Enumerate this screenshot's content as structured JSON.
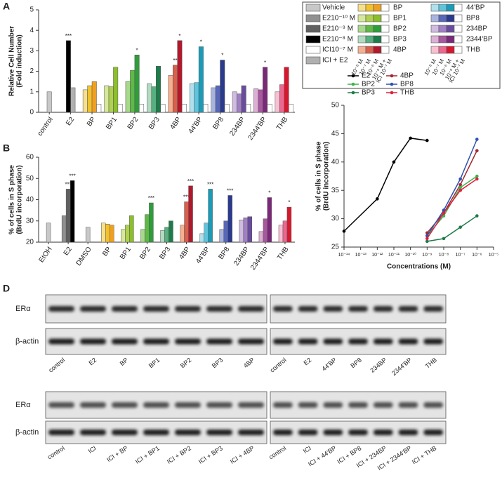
{
  "chart_data": [
    {
      "type": "bar",
      "panel": "A",
      "ylabel": [
        "Relative Cell Number",
        "(Fold induction)"
      ],
      "ylim": [
        0,
        5
      ],
      "yticks": [
        0,
        1,
        2,
        3,
        4,
        5
      ],
      "groups": [
        {
          "category": "control",
          "values": [
            1.0
          ],
          "colors": [
            "#c8c8c8"
          ],
          "stars": [
            null
          ]
        },
        {
          "category": "E2",
          "values": [
            3.5,
            1.2
          ],
          "colors": [
            "#000000",
            "#b0b0b0"
          ],
          "stars": [
            "***",
            null
          ]
        },
        {
          "category": "BP",
          "values": [
            1.1,
            1.3,
            1.5,
            0.4
          ],
          "colors": [
            "#f7e08a",
            "#f2c12e",
            "#f0a020",
            "#ffffff"
          ],
          "stars": [
            null,
            null,
            null,
            null
          ]
        },
        {
          "category": "BP1",
          "values": [
            1.3,
            1.25,
            2.2,
            0.4
          ],
          "colors": [
            "#d6e89a",
            "#b0d050",
            "#8cbf2a",
            "#ffffff"
          ],
          "stars": [
            null,
            null,
            null,
            null
          ]
        },
        {
          "category": "BP2",
          "values": [
            1.5,
            2.05,
            2.8,
            0.4
          ],
          "colors": [
            "#a8d88a",
            "#60b848",
            "#2e9e3a",
            "#ffffff"
          ],
          "stars": [
            null,
            null,
            "*",
            null
          ]
        },
        {
          "category": "BP3",
          "values": [
            1.4,
            1.25,
            2.25,
            0.4
          ],
          "colors": [
            "#b2dcc0",
            "#58b080",
            "#1e7b4a",
            "#ffffff"
          ],
          "stars": [
            null,
            null,
            null,
            null
          ]
        },
        {
          "category": "4BP",
          "values": [
            1.8,
            2.3,
            3.5,
            0.4
          ],
          "colors": [
            "#f4b090",
            "#d8604d",
            "#b2182b",
            "#ffffff"
          ],
          "stars": [
            null,
            "**",
            "*",
            null
          ]
        },
        {
          "category": "44'BP",
          "values": [
            1.4,
            1.45,
            3.2,
            0.4
          ],
          "colors": [
            "#b0e0ec",
            "#60c4dc",
            "#1a9bb8",
            "#ffffff"
          ],
          "stars": [
            null,
            null,
            "*",
            null
          ]
        },
        {
          "category": "BP8",
          "values": [
            1.2,
            1.3,
            2.55,
            0.4
          ],
          "colors": [
            "#a8b4e0",
            "#5868b8",
            "#2a3a8c",
            "#ffffff"
          ],
          "stars": [
            null,
            null,
            "*",
            null
          ]
        },
        {
          "category": "234BP",
          "values": [
            1.0,
            0.9,
            1.3,
            0.4
          ],
          "colors": [
            "#d0bce0",
            "#a080c4",
            "#6a4c9c",
            "#ffffff"
          ],
          "stars": [
            null,
            null,
            null,
            null
          ]
        },
        {
          "category": "2344'BP",
          "values": [
            1.15,
            1.1,
            2.2,
            0.4
          ],
          "colors": [
            "#dcb0d4",
            "#a8589e",
            "#7a2878",
            "#ffffff"
          ],
          "stars": [
            null,
            null,
            "*",
            null
          ]
        },
        {
          "category": "THB",
          "values": [
            1.0,
            1.35,
            2.2,
            0.4
          ],
          "colors": [
            "#f8c0d0",
            "#ec6890",
            "#d6182e",
            "#ffffff"
          ],
          "stars": [
            null,
            null,
            null,
            null
          ]
        }
      ],
      "legend": {
        "entries": [
          {
            "label": "Vehicle",
            "color": "#c8c8c8"
          },
          {
            "label": "E210⁻¹⁰ M",
            "color": "#909090"
          },
          {
            "label": "E210⁻⁹ M",
            "color": "#606060"
          },
          {
            "label": "E210⁻⁸ M",
            "color": "#000000"
          },
          {
            "label": "ICI10⁻⁷ M",
            "color": "#ffffff"
          },
          {
            "label": "ICI + E2",
            "color": "#b0b0b0"
          }
        ],
        "compounds": [
          "BP",
          "BP1",
          "BP2",
          "BP3",
          "4BP",
          "44'BP",
          "BP8",
          "234BP",
          "2344'BP",
          "THB"
        ],
        "doses": [
          "10⁻⁸ M",
          "10⁻⁷ M",
          "10⁻⁶ M",
          "10⁻⁶ M +",
          "ICI 10⁻⁷ M"
        ]
      }
    },
    {
      "type": "bar",
      "panel": "B",
      "ylabel": [
        "% of cells in S phase",
        "(BrdU incorporation)"
      ],
      "ylim": [
        20,
        60
      ],
      "yticks": [
        20,
        30,
        40,
        50,
        60
      ],
      "groups": [
        {
          "category": "EtOH",
          "values": [
            29
          ],
          "colors": [
            "#c8c8c8"
          ],
          "stars": [
            null
          ]
        },
        {
          "category": "E2",
          "values": [
            32.5,
            45,
            49
          ],
          "colors": [
            "#909090",
            "#606060",
            "#000000"
          ],
          "stars": [
            null,
            "***",
            "***"
          ]
        },
        {
          "category": "DMSO",
          "values": [
            27
          ],
          "colors": [
            "#c8c8c8"
          ],
          "stars": [
            null
          ]
        },
        {
          "category": "BP",
          "values": [
            29,
            28.5,
            28
          ],
          "colors": [
            "#f7e08a",
            "#f2c12e",
            "#f0a020"
          ],
          "stars": [
            null,
            null,
            null
          ]
        },
        {
          "category": "BP1",
          "values": [
            26,
            28,
            32.5
          ],
          "colors": [
            "#d6e89a",
            "#b0d050",
            "#8cbf2a"
          ],
          "stars": [
            null,
            null,
            null
          ]
        },
        {
          "category": "BP2",
          "values": [
            26,
            33,
            38.5
          ],
          "colors": [
            "#a8d88a",
            "#60b848",
            "#2e9e3a"
          ],
          "stars": [
            null,
            null,
            "***"
          ]
        },
        {
          "category": "BP3",
          "values": [
            25.5,
            27,
            30
          ],
          "colors": [
            "#b2dcc0",
            "#58b080",
            "#1e7b4a"
          ],
          "stars": [
            null,
            null,
            null
          ]
        },
        {
          "category": "4BP",
          "values": [
            28,
            39,
            46.5
          ],
          "colors": [
            "#f4b090",
            "#d8604d",
            "#b2182b"
          ],
          "stars": [
            null,
            "***",
            "***"
          ]
        },
        {
          "category": "44'BP",
          "values": [
            24,
            29,
            45
          ],
          "colors": [
            "#b0e0ec",
            "#60c4dc",
            "#1a9bb8"
          ],
          "stars": [
            null,
            null,
            "***"
          ]
        },
        {
          "category": "BP8",
          "values": [
            26,
            30,
            42
          ],
          "colors": [
            "#a8b4e0",
            "#5868b8",
            "#2a3a8c"
          ],
          "stars": [
            null,
            null,
            "***"
          ]
        },
        {
          "category": "234BP",
          "values": [
            30.5,
            31.5,
            32
          ],
          "colors": [
            "#d0bce0",
            "#a080c4",
            "#6a4c9c"
          ],
          "stars": [
            null,
            null,
            null
          ]
        },
        {
          "category": "2344'BP",
          "values": [
            25,
            31,
            41
          ],
          "colors": [
            "#dcb0d4",
            "#a8589e",
            "#7a2878"
          ],
          "stars": [
            null,
            null,
            "*"
          ]
        },
        {
          "category": "THB",
          "values": [
            28,
            30,
            36.5
          ],
          "colors": [
            "#f8c0d0",
            "#ec6890",
            "#d6182e"
          ],
          "stars": [
            null,
            null,
            "*"
          ]
        }
      ]
    },
    {
      "type": "line",
      "panel": "C",
      "ylabel": [
        "% of cells in S phase",
        "(BrdU incorporation)"
      ],
      "xlabel": "Concentrations (M)",
      "xscale": "log",
      "xlim": [
        1e-14,
        1e-05
      ],
      "ylim": [
        25,
        50
      ],
      "yticks": [
        25,
        30,
        35,
        40,
        45,
        50
      ],
      "xticks": [
        {
          "value": 1e-14,
          "label": "10⁻¹⁴"
        },
        {
          "value": 1e-13,
          "label": "10⁻¹³"
        },
        {
          "value": 1e-12,
          "label": "10⁻¹²"
        },
        {
          "value": 1e-11,
          "label": "10⁻¹¹"
        },
        {
          "value": 1e-10,
          "label": "10⁻¹⁰"
        },
        {
          "value": 1e-09,
          "label": "10⁻⁹"
        },
        {
          "value": 1e-08,
          "label": "10⁻⁸"
        },
        {
          "value": 1e-07,
          "label": "10⁻⁷"
        },
        {
          "value": 1e-06,
          "label": "10⁻⁶"
        },
        {
          "value": 1e-05,
          "label": "10⁻⁵"
        }
      ],
      "series": [
        {
          "name": "E2",
          "color": "#000000",
          "x": [
            1e-14,
            1e-12,
            1e-11,
            1e-10,
            1e-09
          ],
          "values": [
            27.8,
            33.5,
            40,
            44.2,
            43.8
          ]
        },
        {
          "name": "4BP",
          "color": "#a02830",
          "x": [
            1e-09,
            1e-08,
            1e-07,
            1e-06
          ],
          "values": [
            27.5,
            31,
            36,
            42
          ]
        },
        {
          "name": "BP2",
          "color": "#3cb44b",
          "x": [
            1e-09,
            1e-08,
            1e-07,
            1e-06
          ],
          "values": [
            27,
            30.5,
            35.5,
            37.5
          ]
        },
        {
          "name": "BP8",
          "color": "#3050b0",
          "x": [
            1e-09,
            1e-08,
            1e-07,
            1e-06
          ],
          "values": [
            27,
            31.5,
            37,
            44
          ]
        },
        {
          "name": "BP3",
          "color": "#1e7b4a",
          "x": [
            1e-09,
            1e-08,
            1e-07,
            1e-06
          ],
          "values": [
            26,
            26.5,
            28.5,
            30.5
          ]
        },
        {
          "name": "THB",
          "color": "#e0203c",
          "x": [
            1e-09,
            1e-08,
            1e-07,
            1e-06
          ],
          "values": [
            26.5,
            31,
            35,
            37
          ]
        }
      ]
    }
  ],
  "blot": {
    "panel": "D",
    "sets": [
      {
        "rows": [
          "ERα",
          "β-actin"
        ],
        "blocks": [
          [
            "control",
            "E2",
            "BP",
            "BP1",
            "BP2",
            "BP3",
            "4BP"
          ],
          [
            "control",
            "E2",
            "44'BP",
            "BP8",
            "234BP",
            "2344'BP",
            "THB"
          ]
        ]
      },
      {
        "rows": [
          "ERα",
          "β-actin"
        ],
        "blocks": [
          [
            "control",
            "ICI",
            "ICI + BP",
            "ICI + BP1",
            "ICI + BP2",
            "ICI + BP3",
            "ICI + 4BP"
          ],
          [
            "control",
            "ICI",
            "ICI + 44'BP",
            "ICI + BP8",
            "ICI + 234BP",
            "ICI + 2344'BP",
            "ICI + THB"
          ]
        ]
      }
    ]
  }
}
